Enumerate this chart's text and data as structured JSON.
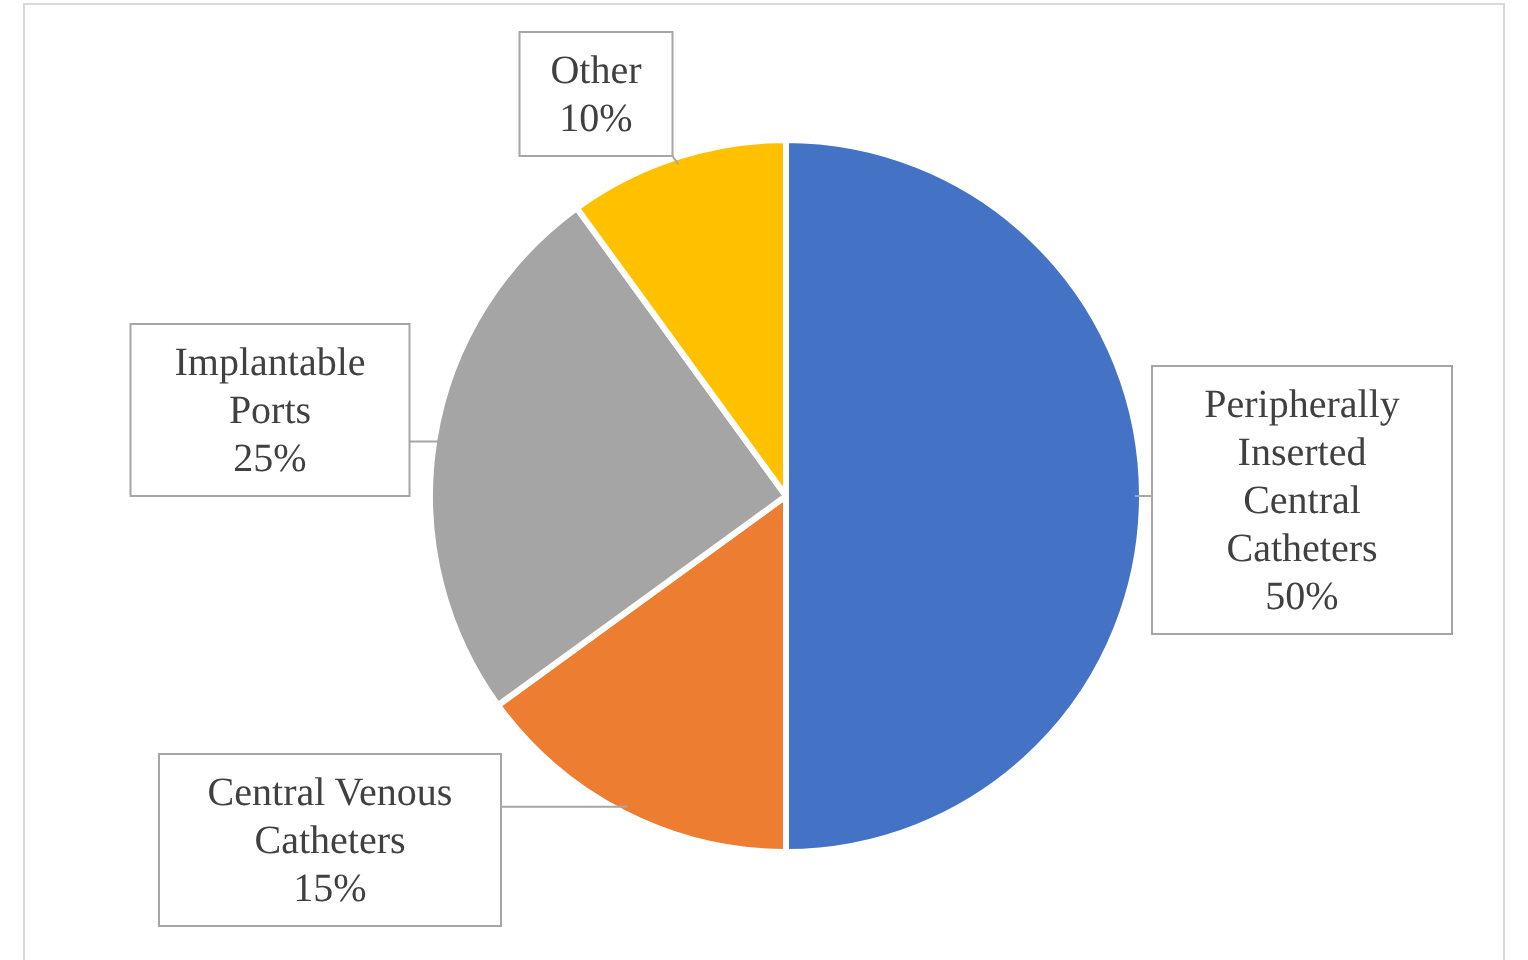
{
  "chart_data": {
    "type": "pie",
    "categories": [
      "Peripherally Inserted Central Catheters",
      "Central Venous Catheters",
      "Implantable Ports",
      "Other"
    ],
    "values": [
      50,
      15,
      25,
      10
    ],
    "colors": [
      "#4472c4",
      "#ed7d31",
      "#a5a5a5",
      "#ffc000"
    ],
    "value_labels": [
      "50%",
      "15%",
      "25%",
      "10%"
    ]
  }
}
